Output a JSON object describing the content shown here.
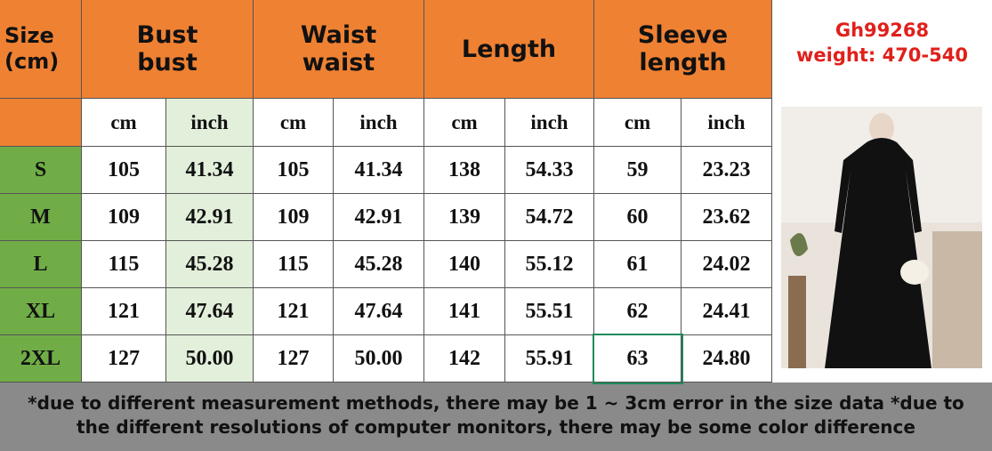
{
  "table": {
    "header": [
      {
        "lines": [
          "Size",
          "(cm)"
        ]
      },
      {
        "lines": [
          "Bust",
          "bust"
        ]
      },
      {
        "lines": [
          "Waist",
          "waist"
        ]
      },
      {
        "lines": [
          "Length"
        ]
      },
      {
        "lines": [
          "Sleeve",
          "length"
        ]
      }
    ],
    "units": [
      "cm",
      "inch",
      "cm",
      "inch",
      "cm",
      "inch",
      "cm",
      "inch"
    ],
    "rows": [
      {
        "size": "S",
        "cells": [
          "105",
          "41.34",
          "105",
          "41.34",
          "138",
          "54.33",
          "59",
          "23.23"
        ]
      },
      {
        "size": "M",
        "cells": [
          "109",
          "42.91",
          "109",
          "42.91",
          "139",
          "54.72",
          "60",
          "23.62"
        ]
      },
      {
        "size": "L",
        "cells": [
          "115",
          "45.28",
          "115",
          "45.28",
          "140",
          "55.12",
          "61",
          "24.02"
        ]
      },
      {
        "size": "XL",
        "cells": [
          "121",
          "47.64",
          "121",
          "47.64",
          "141",
          "55.51",
          "62",
          "24.41"
        ]
      },
      {
        "size": "2XL",
        "cells": [
          "127",
          "50.00",
          "127",
          "50.00",
          "142",
          "55.91",
          "63",
          "24.80"
        ]
      }
    ]
  },
  "product": {
    "code": "Gh99268",
    "weight": "weight: 470-540"
  },
  "footer": {
    "note": "*due to different measurement methods, there may be 1 ~ 3cm error in the size data *due to the different resolutions of computer monitors, there may be some color difference"
  }
}
